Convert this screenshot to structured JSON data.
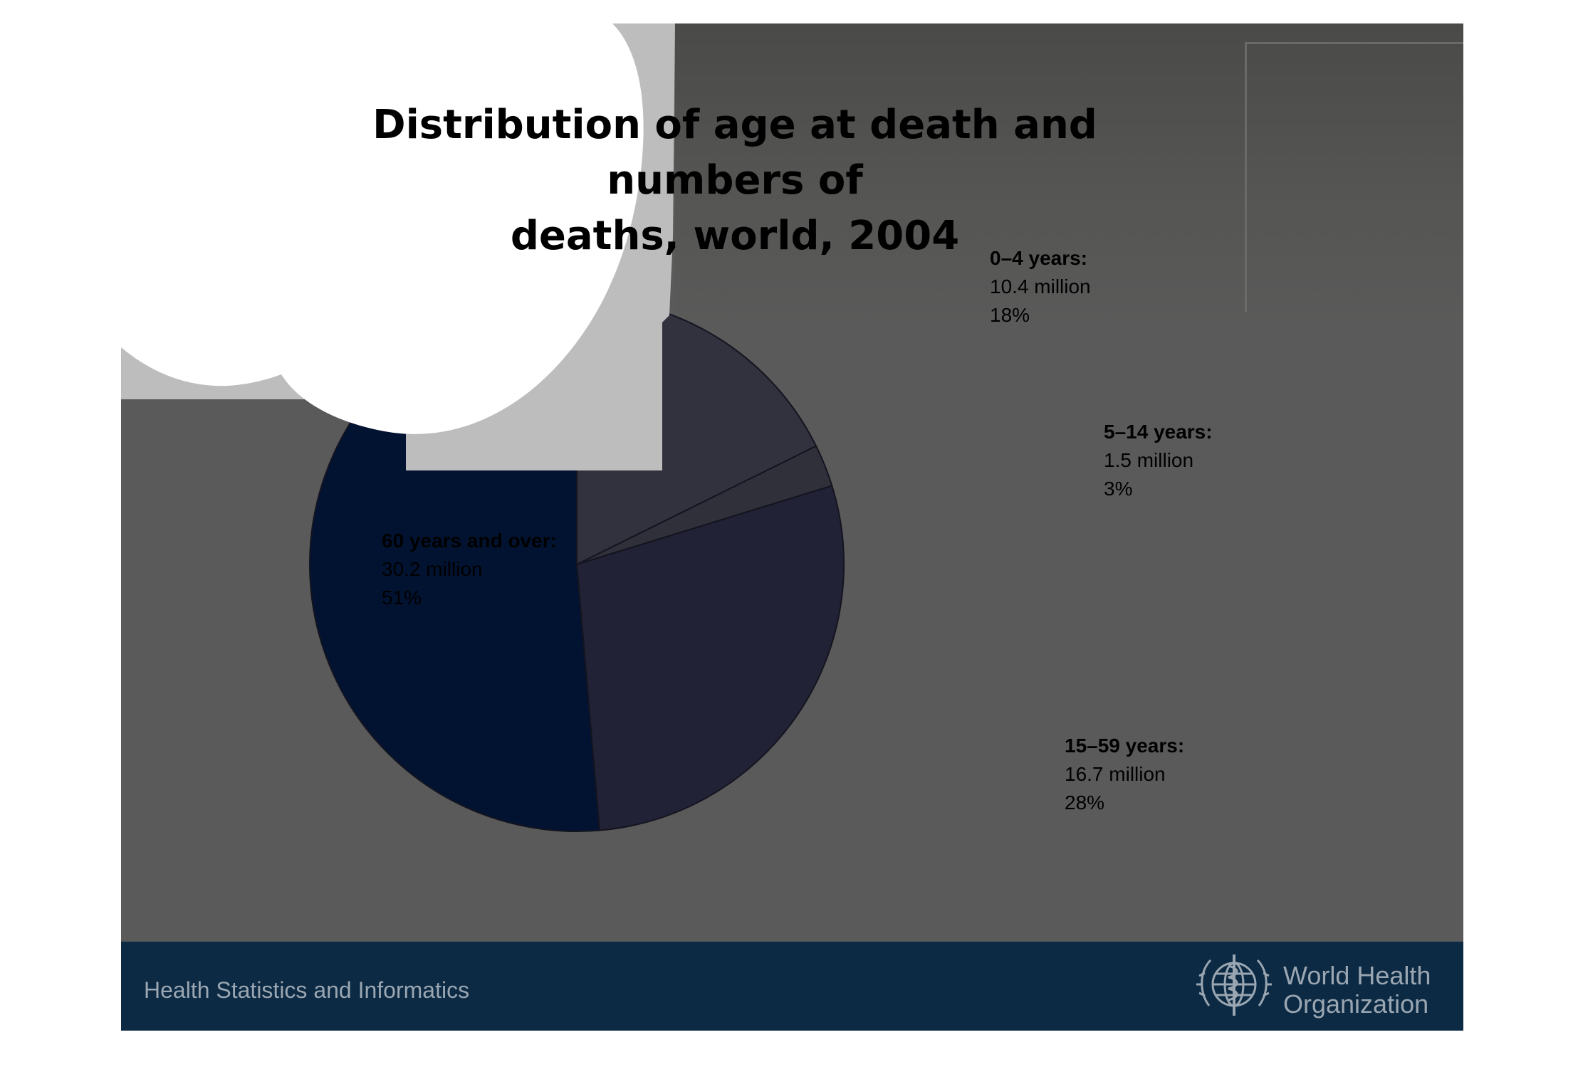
{
  "slide": {
    "title_line1": "Distribution of age at death and numbers of",
    "title_line2": "deaths, world, 2004",
    "footer_left": "Health Statistics and Informatics",
    "logo_text_line1": "World Health",
    "logo_text_line2": "Organization",
    "logo_icon": "who-emblem-icon"
  },
  "colors": {
    "background": "#5a5a5a",
    "footer": "#0c2a43",
    "footer_text": "#9aa6b2"
  },
  "chart_data": {
    "type": "pie",
    "title": "Distribution of age at death and numbers of deaths, world, 2004",
    "start": "12 o'clock",
    "direction": "clockwise",
    "legend": "none",
    "slices": [
      {
        "name": "0–4 years:",
        "value_label": "10.4 million",
        "pct_label": "18%",
        "value": 10.4,
        "percent": 18,
        "color": "#32323f"
      },
      {
        "name": "5–14 years:",
        "value_label": "1.5 million",
        "pct_label": "3%",
        "value": 1.5,
        "percent": 3,
        "color": "#30303b"
      },
      {
        "name": "15–59 years:",
        "value_label": "16.7 million",
        "pct_label": "28%",
        "value": 16.7,
        "percent": 28,
        "color": "#222236"
      },
      {
        "name": "60 years and over:",
        "value_label": "30.2 million",
        "pct_label": "51%",
        "value": 30.2,
        "percent": 51,
        "color": "#021331"
      }
    ]
  }
}
